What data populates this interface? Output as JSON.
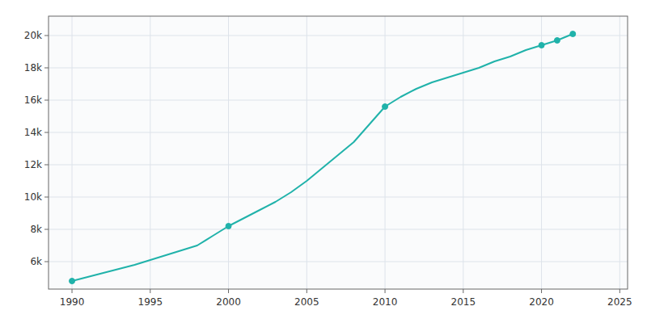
{
  "chart_data": {
    "type": "line",
    "x": [
      1990,
      1991,
      1992,
      1993,
      1994,
      1995,
      1996,
      1997,
      1998,
      1999,
      2000,
      2001,
      2002,
      2003,
      2004,
      2005,
      2006,
      2007,
      2008,
      2009,
      2010,
      2011,
      2012,
      2013,
      2014,
      2015,
      2016,
      2017,
      2018,
      2019,
      2020,
      2021,
      2022
    ],
    "series": [
      {
        "type": "line",
        "color": "#20B2AA",
        "values": [
          4800,
          5050,
          5300,
          5550,
          5800,
          6100,
          6400,
          6700,
          7000,
          7600,
          8200,
          8700,
          9200,
          9700,
          10300,
          11000,
          11800,
          12600,
          13400,
          14500,
          15600,
          16200,
          16700,
          17100,
          17400,
          17700,
          18000,
          18400,
          18700,
          19100,
          19400,
          19700,
          20100
        ]
      },
      {
        "type": "scatter",
        "color": "#20B2AA",
        "marker": "circle",
        "x": [
          1990,
          2000,
          2010,
          2020,
          2021,
          2022
        ],
        "values": [
          4800,
          8200,
          15600,
          19400,
          19700,
          20100
        ]
      }
    ],
    "xlim": [
      1988.5,
      2025.5
    ],
    "ylim": [
      4300,
      21200
    ],
    "xticks": [
      1990,
      1995,
      2000,
      2005,
      2010,
      2015,
      2020,
      2025
    ],
    "yticks": [
      {
        "value": 6000,
        "label": "6k"
      },
      {
        "value": 8000,
        "label": "8k"
      },
      {
        "value": 10000,
        "label": "10k"
      },
      {
        "value": 12000,
        "label": "12k"
      },
      {
        "value": 14000,
        "label": "14k"
      },
      {
        "value": 16000,
        "label": "16k"
      },
      {
        "value": 18000,
        "label": "18k"
      },
      {
        "value": 20000,
        "label": "20k"
      }
    ],
    "grid": true
  }
}
